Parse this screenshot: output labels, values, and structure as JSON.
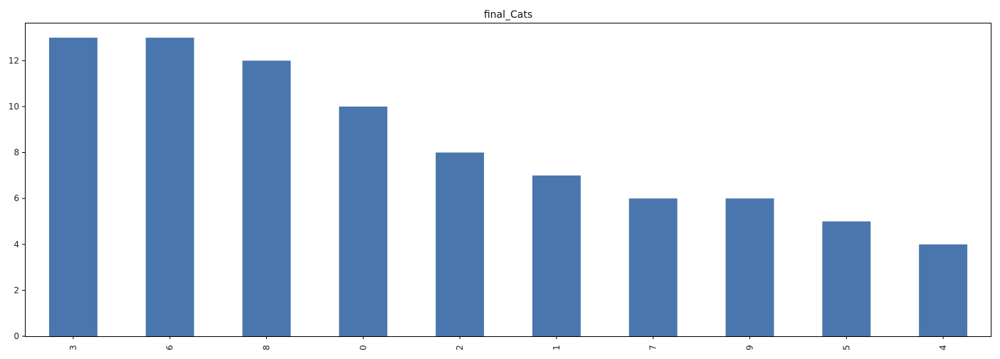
{
  "chart_data": {
    "type": "bar",
    "title": "final_Cats",
    "xlabel": "",
    "ylabel": "",
    "categories": [
      "3",
      "6",
      "8",
      "0",
      "2",
      "1",
      "7",
      "9",
      "5",
      "4"
    ],
    "values": [
      13,
      13,
      12,
      10,
      8,
      7,
      6,
      6,
      5,
      4
    ],
    "ylim": [
      0,
      13.65
    ],
    "yticks": [
      0,
      2,
      4,
      6,
      8,
      10,
      12
    ],
    "x_tick_rotation": "vertical",
    "grid": false,
    "legend": "none",
    "bar_color": "#4a76ae",
    "axis_color": "#000000"
  }
}
